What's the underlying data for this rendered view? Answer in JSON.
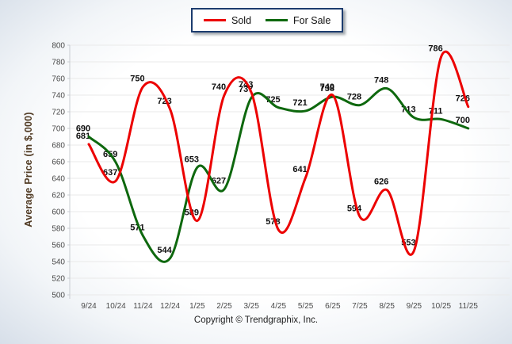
{
  "chart_data": {
    "type": "line",
    "title": "",
    "xlabel": "",
    "ylabel": "Average Price (in $,000)",
    "categories": [
      "9/24",
      "10/24",
      "11/24",
      "12/24",
      "1/25",
      "2/25",
      "3/25",
      "4/25",
      "5/25",
      "6/25",
      "7/25",
      "8/25",
      "9/25",
      "10/25",
      "11/25"
    ],
    "series": [
      {
        "name": "Sold",
        "color": "#ec0000",
        "values": [
          681,
          637,
          750,
          723,
          589,
          740,
          743,
          578,
          641,
          740,
          594,
          626,
          553,
          786,
          726
        ]
      },
      {
        "name": "For Sale",
        "color": "#0e680e",
        "values": [
          690,
          659,
          571,
          544,
          653,
          627,
          737,
          725,
          721,
          738,
          728,
          748,
          713,
          711,
          700
        ]
      }
    ],
    "ylim": [
      500,
      800
    ],
    "ytick_step": 20,
    "yticks": [
      500,
      520,
      540,
      560,
      580,
      600,
      620,
      640,
      660,
      680,
      700,
      720,
      740,
      760,
      780,
      800
    ],
    "grid": "horizontal",
    "legend_position": "top-center",
    "smoothing": "spline"
  },
  "colors": {
    "grid": "#e9e9e9",
    "axis": "#c9cdd2",
    "tick_text": "#4a4a4a",
    "label_text": "#101010",
    "legend_border": "#1c3c6e",
    "axis_title": "#503a23"
  },
  "footer": {
    "text": "Copyright © Trendgraphix, Inc."
  }
}
